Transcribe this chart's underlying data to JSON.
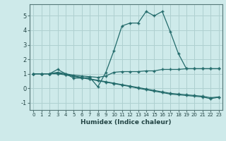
{
  "title": "",
  "xlabel": "Humidex (Indice chaleur)",
  "ylabel": "",
  "bg_color": "#ceeaea",
  "grid_color": "#afd0d0",
  "line_color": "#236b6b",
  "xlim": [
    -0.5,
    23.5
  ],
  "ylim": [
    -1.5,
    5.8
  ],
  "xticks": [
    0,
    1,
    2,
    3,
    4,
    5,
    6,
    7,
    8,
    9,
    10,
    11,
    12,
    13,
    14,
    15,
    16,
    17,
    18,
    19,
    20,
    21,
    22,
    23
  ],
  "yticks": [
    -1,
    0,
    1,
    2,
    3,
    4,
    5
  ],
  "lines": [
    {
      "x": [
        0,
        1,
        2,
        3,
        4,
        5,
        6,
        7,
        8,
        9,
        10,
        11,
        12,
        13,
        14,
        15,
        16,
        17,
        18,
        19,
        20,
        21,
        22,
        23
      ],
      "y": [
        1.0,
        1.0,
        1.0,
        1.1,
        1.0,
        0.7,
        0.7,
        0.75,
        0.1,
        1.1,
        2.6,
        4.3,
        4.5,
        4.5,
        5.3,
        5.0,
        5.3,
        3.9,
        2.4,
        1.35,
        1.35,
        1.35,
        1.35,
        1.35
      ]
    },
    {
      "x": [
        0,
        1,
        2,
        3,
        4,
        5,
        6,
        7,
        8,
        9,
        10,
        11,
        12,
        13,
        14,
        15,
        16,
        17,
        18,
        19,
        20,
        21,
        22,
        23
      ],
      "y": [
        1.0,
        1.0,
        1.0,
        1.3,
        1.0,
        0.9,
        0.85,
        0.8,
        0.75,
        0.85,
        1.1,
        1.15,
        1.15,
        1.15,
        1.2,
        1.2,
        1.3,
        1.3,
        1.3,
        1.35,
        1.35,
        1.35,
        1.35,
        1.35
      ]
    },
    {
      "x": [
        0,
        1,
        2,
        3,
        4,
        5,
        6,
        7,
        8,
        9,
        10,
        11,
        12,
        13,
        14,
        15,
        16,
        17,
        18,
        19,
        20,
        21,
        22,
        23
      ],
      "y": [
        1.0,
        1.0,
        1.0,
        1.05,
        0.95,
        0.85,
        0.75,
        0.65,
        0.55,
        0.45,
        0.35,
        0.25,
        0.15,
        0.05,
        -0.05,
        -0.15,
        -0.25,
        -0.35,
        -0.4,
        -0.45,
        -0.5,
        -0.55,
        -0.65,
        -0.6
      ]
    },
    {
      "x": [
        0,
        1,
        2,
        3,
        4,
        5,
        6,
        7,
        8,
        9,
        10,
        11,
        12,
        13,
        14,
        15,
        16,
        17,
        18,
        19,
        20,
        21,
        22,
        23
      ],
      "y": [
        1.0,
        1.0,
        1.0,
        1.0,
        0.92,
        0.82,
        0.72,
        0.62,
        0.52,
        0.42,
        0.32,
        0.22,
        0.12,
        0.0,
        -0.1,
        -0.2,
        -0.3,
        -0.4,
        -0.45,
        -0.5,
        -0.55,
        -0.6,
        -0.72,
        -0.62
      ]
    }
  ]
}
